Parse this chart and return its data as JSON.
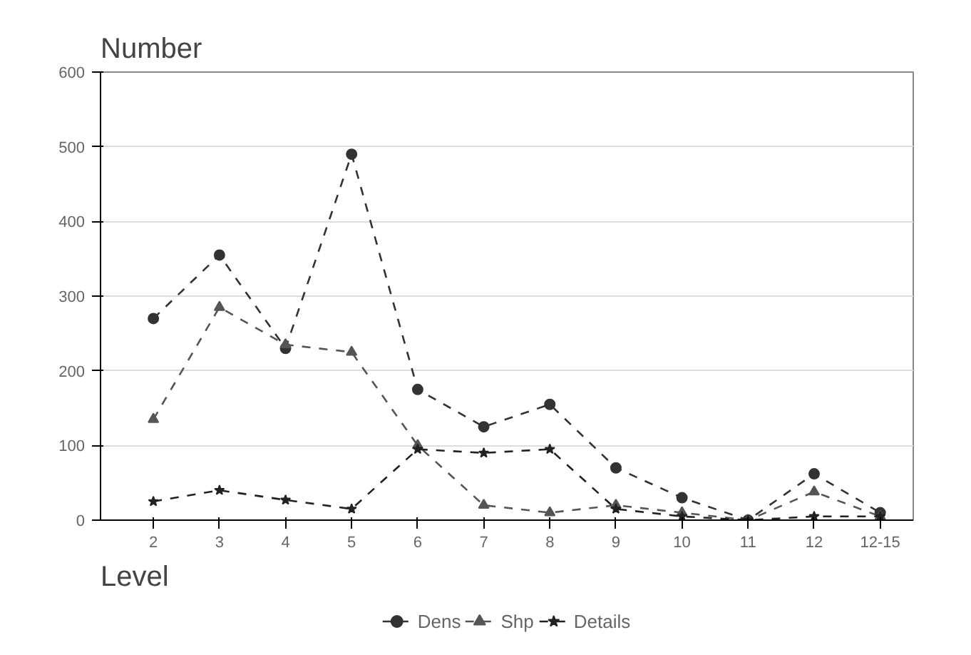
{
  "chart_data": {
    "type": "line",
    "title": "Number",
    "xlabel": "Level",
    "categories": [
      "2",
      "3",
      "4",
      "5",
      "6",
      "7",
      "8",
      "9",
      "10",
      "11",
      "12",
      "12-15"
    ],
    "series": [
      {
        "name": "Dens",
        "color": "#333333",
        "marker": "circle",
        "values": [
          270,
          355,
          230,
          490,
          175,
          125,
          155,
          70,
          30,
          0,
          62,
          10
        ]
      },
      {
        "name": "Shp",
        "color": "#555555",
        "marker": "triangle",
        "values": [
          135,
          285,
          235,
          225,
          100,
          20,
          10,
          20,
          10,
          0,
          38,
          5
        ]
      },
      {
        "name": "Details",
        "color": "#222222",
        "marker": "star",
        "values": [
          25,
          40,
          27,
          15,
          95,
          90,
          95,
          15,
          5,
          0,
          5,
          5
        ]
      }
    ],
    "ylim": [
      0,
      600
    ],
    "yticks": [
      0,
      100,
      200,
      300,
      400,
      500,
      600
    ],
    "grid": "y",
    "legend": "bottom",
    "line_style": "dashed"
  }
}
